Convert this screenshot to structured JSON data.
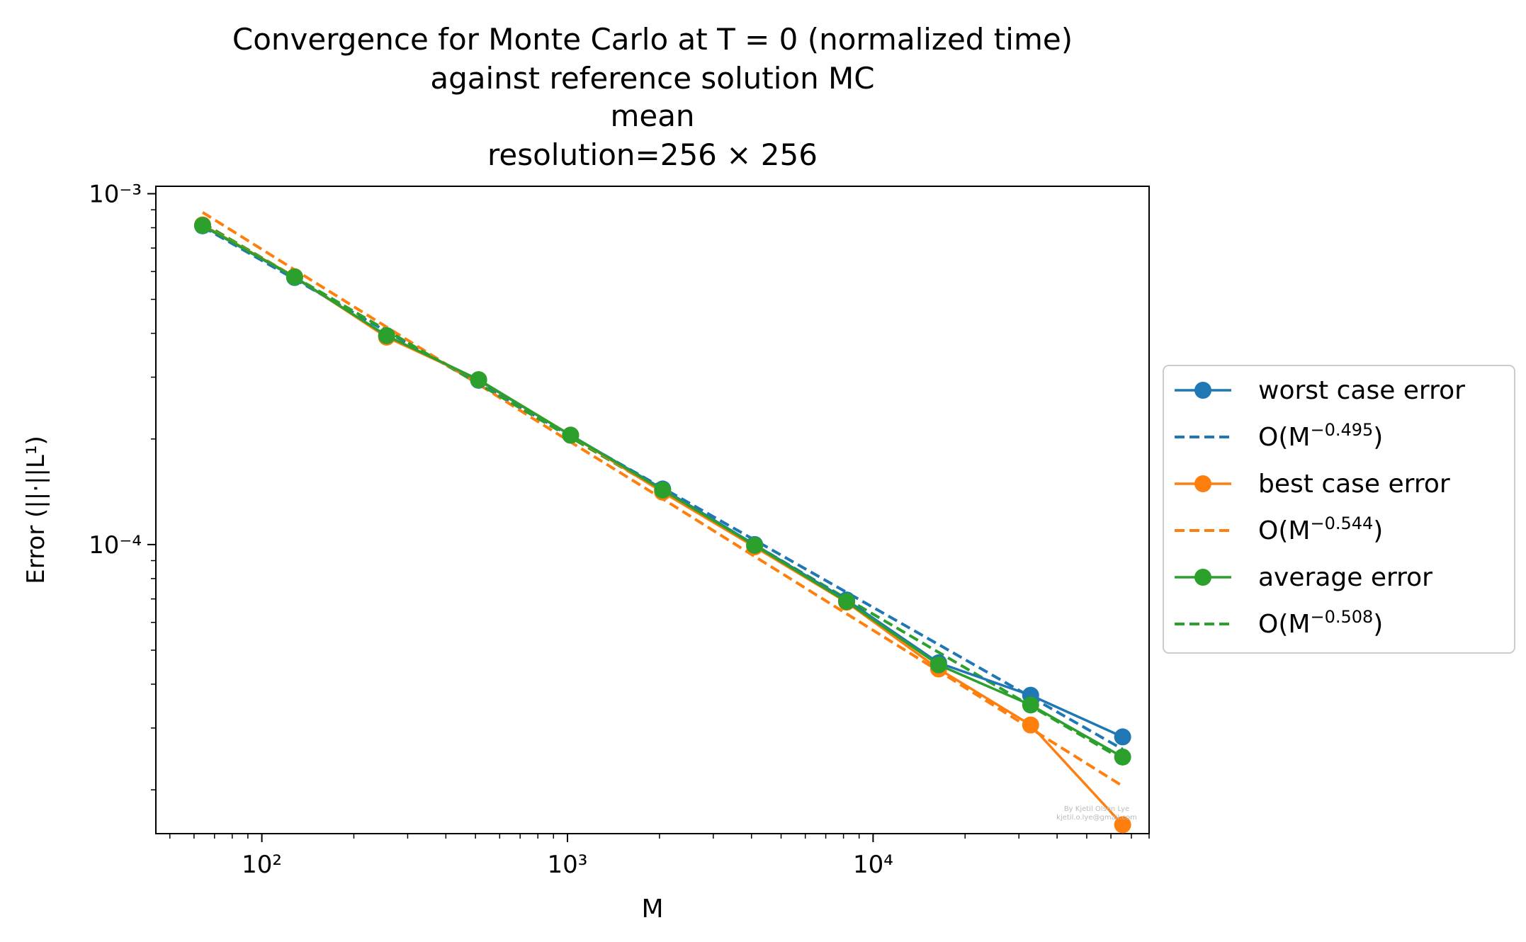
{
  "chart_data": {
    "type": "line",
    "title_lines": [
      "Convergence for Monte Carlo at T = 0 (normalized time)",
      "against reference solution MC",
      "mean",
      "resolution=256 × 256"
    ],
    "xlabel": "M",
    "ylabel": "Error (||·||L¹)",
    "xscale": "log",
    "yscale": "log",
    "xlim": [
      45,
      80000
    ],
    "ylim": [
      1.5e-05,
      0.00105
    ],
    "x_ticks": [
      {
        "value": 100,
        "label": "10²"
      },
      {
        "value": 1000,
        "label": "10³"
      },
      {
        "value": 10000,
        "label": "10⁴"
      }
    ],
    "y_ticks": [
      {
        "value": 0.0001,
        "label": "10⁻⁴"
      },
      {
        "value": 0.001,
        "label": "10⁻³"
      }
    ],
    "x": [
      64,
      128,
      256,
      512,
      1024,
      2048,
      4096,
      8192,
      16384,
      32768,
      65536
    ],
    "series": [
      {
        "name": "worst case error",
        "style": "solid-marker",
        "color": "#1f77b4",
        "values": [
          0.00081,
          0.000577,
          0.000393,
          0.000294,
          0.000205,
          0.000144,
          0.0001,
          6.95e-05,
          4.6e-05,
          3.72e-05,
          2.83e-05
        ]
      },
      {
        "name": "O(M^-0.495)",
        "style": "dashed",
        "color": "#1f77b4",
        "values": [
          0.000805,
          0.000571,
          0.000405,
          0.000288,
          0.000204,
          0.000145,
          0.000103,
          7.31e-05,
          5.19e-05,
          3.68e-05,
          2.61e-05
        ]
      },
      {
        "name": "best case error",
        "style": "solid-marker",
        "color": "#ff7f0e",
        "values": [
          0.000815,
          0.00058,
          0.00039,
          0.000295,
          0.000205,
          0.000141,
          9.85e-05,
          6.85e-05,
          4.42e-05,
          3.06e-05,
          1.59e-05
        ]
      },
      {
        "name": "O(M^-0.544)",
        "style": "dashed",
        "color": "#ff7f0e",
        "values": [
          0.000885,
          0.000607,
          0.000417,
          0.000286,
          0.000196,
          0.000135,
          9.25e-05,
          6.35e-05,
          4.36e-05,
          2.99e-05,
          2.05e-05
        ]
      },
      {
        "name": "average error",
        "style": "solid-marker",
        "color": "#2ca02c",
        "values": [
          0.000812,
          0.000579,
          0.000394,
          0.000295,
          0.000205,
          0.000143,
          9.95e-05,
          6.88e-05,
          4.54e-05,
          3.49e-05,
          2.48e-05
        ]
      },
      {
        "name": "O(M^-0.508)",
        "style": "dashed",
        "color": "#2ca02c",
        "values": [
          0.000825,
          0.000579,
          0.000408,
          0.000287,
          0.000202,
          0.000142,
          9.98e-05,
          7.01e-05,
          4.93e-05,
          3.47e-05,
          2.44e-05
        ]
      }
    ],
    "legend": {
      "placement": "right",
      "entries": [
        {
          "series": 0,
          "label": "worst case error"
        },
        {
          "series": 1,
          "label": "O(M",
          "sup": "−0.495",
          "tail": ")"
        },
        {
          "series": 2,
          "label": "best case error"
        },
        {
          "series": 3,
          "label": "O(M",
          "sup": "−0.544",
          "tail": ")"
        },
        {
          "series": 4,
          "label": "average error"
        },
        {
          "series": 5,
          "label": "O(M",
          "sup": "−0.508",
          "tail": ")"
        }
      ]
    },
    "watermark": [
      "By Kjetil Olsen Lye",
      "kjetil.o.lye@gmail.com"
    ],
    "grid": false
  }
}
